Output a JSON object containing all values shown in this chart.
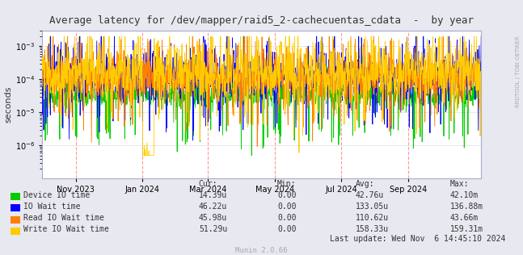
{
  "title": "Average latency for /dev/mapper/raid5_2-cachecuentas_cdata  -  by year",
  "ylabel": "seconds",
  "right_label": "RRDTOOL / TOBI OETIKER",
  "background_color": "#e8e8f0",
  "plot_bg_color": "#ffffff",
  "grid_color": "#dddddd",
  "vline_color": "#ff9999",
  "legend_items": [
    {
      "label": "Device IO time",
      "color": "#00cc00"
    },
    {
      "label": "IO Wait time",
      "color": "#0000ff"
    },
    {
      "label": "Read IO Wait time",
      "color": "#ff7f00"
    },
    {
      "label": "Write IO Wait time",
      "color": "#ffcc00"
    }
  ],
  "legend_cur": [
    "14.39u",
    "46.22u",
    "45.98u",
    "51.29u"
  ],
  "legend_min": [
    "0.00",
    "0.00",
    "0.00",
    "0.00"
  ],
  "legend_avg": [
    "42.76u",
    "133.05u",
    "110.62u",
    "158.33u"
  ],
  "legend_max": [
    "42.10m",
    "136.88m",
    "43.66m",
    "159.31m"
  ],
  "footer": "Munin 2.0.66",
  "last_update": "Last update: Wed Nov  6 14:45:10 2024",
  "ylim_low": 1e-07,
  "ylim_high": 0.003,
  "xstart": 1696118400,
  "xend": 1730851200,
  "vline_positions": [
    1698796800,
    1704067200,
    1709251200,
    1714521600,
    1719792000,
    1725062400
  ],
  "tick_positions": [
    1698796800,
    1704067200,
    1709251200,
    1714521600,
    1719792000,
    1725062400
  ],
  "tick_labels": [
    "Nov 2023",
    "Jan 2024",
    "Mar 2024",
    "May 2024",
    "Jul 2024",
    "Sep 2024"
  ]
}
